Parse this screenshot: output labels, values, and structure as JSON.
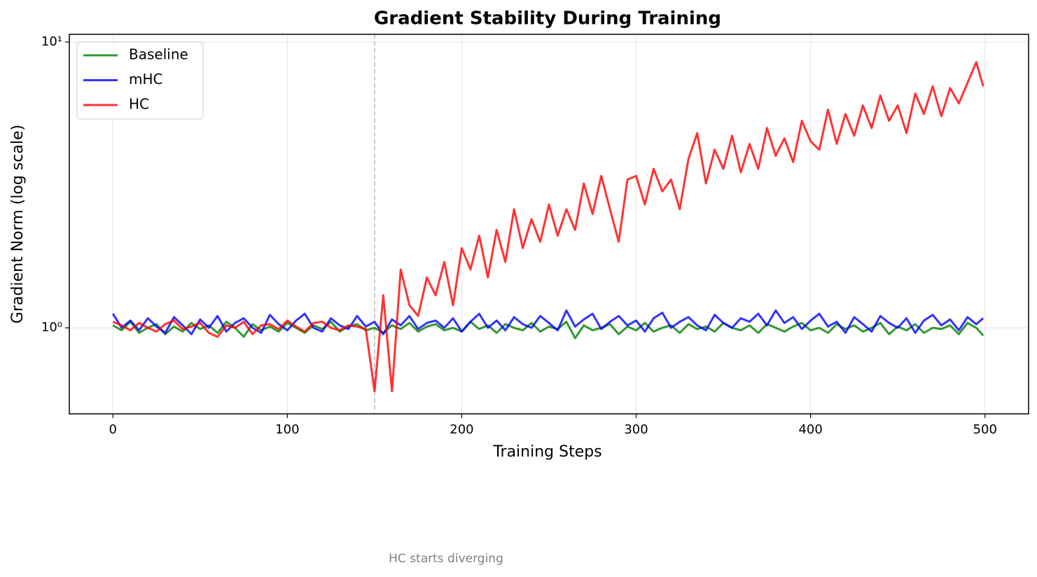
{
  "chart_data": {
    "type": "line",
    "title": "Gradient Stability During Training",
    "xlabel": "Training Steps",
    "ylabel": "Gradient Norm (log scale)",
    "log_y": true,
    "grid": true,
    "legend": "upper left",
    "annotation": {
      "text": "HC starts diverging",
      "x": 150
    },
    "xlim": [
      -25,
      525
    ],
    "xticks": [
      0,
      100,
      200,
      300,
      400,
      500
    ],
    "ylim": [
      0.5,
      10.64
    ],
    "yticks": [
      {
        "value": 1,
        "label": "10⁰"
      },
      {
        "value": 10,
        "label": "10¹"
      }
    ],
    "x": [
      0,
      5,
      10,
      15,
      20,
      25,
      30,
      35,
      40,
      45,
      50,
      55,
      60,
      65,
      70,
      75,
      80,
      85,
      90,
      95,
      100,
      105,
      110,
      115,
      120,
      125,
      130,
      135,
      140,
      145,
      150,
      155,
      160,
      165,
      170,
      175,
      180,
      185,
      190,
      195,
      200,
      205,
      210,
      215,
      220,
      225,
      230,
      235,
      240,
      245,
      250,
      255,
      260,
      265,
      270,
      275,
      280,
      285,
      290,
      295,
      300,
      305,
      310,
      315,
      320,
      325,
      330,
      335,
      340,
      345,
      350,
      355,
      360,
      365,
      370,
      375,
      380,
      385,
      390,
      395,
      400,
      405,
      410,
      415,
      420,
      425,
      430,
      435,
      440,
      445,
      450,
      455,
      460,
      465,
      470,
      475,
      480,
      485,
      490,
      495,
      499
    ],
    "series": [
      {
        "name": "Baseline",
        "color": "#008000",
        "values": [
          1.02,
          0.98,
          1.05,
          0.96,
          1.0,
          1.03,
          0.95,
          1.01,
          0.97,
          1.04,
          0.99,
          1.02,
          0.96,
          1.05,
          1.0,
          0.93,
          1.03,
          0.98,
          1.01,
          0.97,
          1.04,
          1.0,
          0.96,
          1.02,
          0.99,
          1.05,
          0.97,
          1.01,
          1.03,
          0.98,
          1.0,
          0.96,
          1.02,
          0.99,
          1.04,
          0.97,
          1.01,
          1.03,
          0.98,
          1.0,
          0.97,
          1.05,
          0.99,
          1.02,
          0.96,
          1.03,
          1.0,
          0.98,
          1.04,
          0.97,
          1.01,
          0.99,
          1.05,
          0.92,
          1.02,
          0.98,
          1.0,
          1.03,
          0.95,
          1.01,
          0.98,
          1.04,
          0.97,
          1.0,
          1.02,
          0.96,
          1.03,
          0.99,
          1.01,
          0.97,
          1.04,
          1.0,
          0.98,
          1.02,
          0.96,
          1.03,
          1.0,
          0.97,
          1.01,
          1.04,
          0.98,
          1.0,
          0.96,
          1.03,
          0.99,
          1.02,
          0.97,
          1.0,
          1.04,
          0.95,
          1.01,
          0.98,
          1.03,
          0.96,
          1.0,
          0.99,
          1.02,
          0.95,
          1.04,
          1.0,
          0.94
        ]
      },
      {
        "name": "mHC",
        "color": "#0000ff",
        "values": [
          1.12,
          1.0,
          1.06,
          0.98,
          1.08,
          1.01,
          0.96,
          1.09,
          1.02,
          0.95,
          1.07,
          1.0,
          1.1,
          0.97,
          1.04,
          1.08,
          1.0,
          0.96,
          1.11,
          1.03,
          0.98,
          1.06,
          1.12,
          1.0,
          0.97,
          1.08,
          1.02,
          0.99,
          1.1,
          1.01,
          1.05,
          0.95,
          1.07,
          1.02,
          1.1,
          0.99,
          1.04,
          1.06,
          1.0,
          1.08,
          0.97,
          1.05,
          1.12,
          1.0,
          1.06,
          0.98,
          1.09,
          1.03,
          1.0,
          1.1,
          1.04,
          0.98,
          1.15,
          1.01,
          1.07,
          1.12,
          0.99,
          1.05,
          1.1,
          1.02,
          1.06,
          0.97,
          1.08,
          1.13,
          1.0,
          1.05,
          1.09,
          1.02,
          0.98,
          1.11,
          1.04,
          1.0,
          1.08,
          1.05,
          1.12,
          1.02,
          1.15,
          1.04,
          1.09,
          0.99,
          1.06,
          1.12,
          1.01,
          1.05,
          0.96,
          1.09,
          1.03,
          0.97,
          1.1,
          1.04,
          1.0,
          1.08,
          0.96,
          1.06,
          1.11,
          1.02,
          1.07,
          0.98,
          1.09,
          1.03,
          1.08
        ]
      },
      {
        "name": "HC",
        "color": "#ff0000",
        "values": [
          1.05,
          1.02,
          0.98,
          1.04,
          1.0,
          0.97,
          1.03,
          1.06,
          0.99,
          1.01,
          1.04,
          0.96,
          0.93,
          1.02,
          1.0,
          1.05,
          0.95,
          1.02,
          1.03,
          0.99,
          1.06,
          1.01,
          0.97,
          1.04,
          1.05,
          1.0,
          0.98,
          1.02,
          1.01,
          0.99,
          0.6,
          1.3,
          0.6,
          1.6,
          1.2,
          1.1,
          1.5,
          1.3,
          1.7,
          1.2,
          1.9,
          1.6,
          2.1,
          1.5,
          2.2,
          1.7,
          2.6,
          1.9,
          2.4,
          2.0,
          2.7,
          2.1,
          2.6,
          2.2,
          3.2,
          2.5,
          3.4,
          2.6,
          2.0,
          3.3,
          3.4,
          2.7,
          3.6,
          3.0,
          3.3,
          2.6,
          3.9,
          4.8,
          3.2,
          4.2,
          3.6,
          4.7,
          3.5,
          4.4,
          3.6,
          5.0,
          4.0,
          4.6,
          3.8,
          5.3,
          4.5,
          4.2,
          5.8,
          4.4,
          5.6,
          4.7,
          6.0,
          5.0,
          6.5,
          5.3,
          6.0,
          4.8,
          6.6,
          5.6,
          7.0,
          5.5,
          6.9,
          6.1,
          7.2,
          8.5,
          7.0
        ]
      }
    ]
  }
}
